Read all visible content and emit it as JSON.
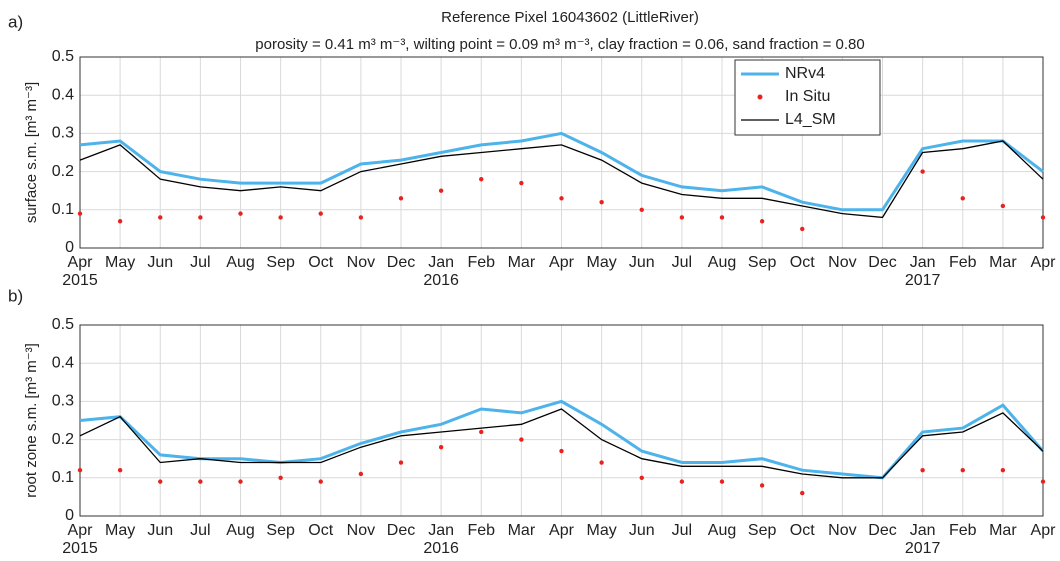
{
  "chart_data": [
    {
      "type": "line",
      "panel_label": "a)",
      "title": "Reference Pixel 16043602 (LittleRiver)",
      "subtitle": "porosity = 0.41 m³ m⁻³, wilting point = 0.09 m³ m⁻³, clay fraction = 0.06, sand fraction = 0.80",
      "ylabel": "surface s.m. [m³ m⁻³]",
      "x": [
        "2015-04",
        "2015-05",
        "2015-06",
        "2015-07",
        "2015-08",
        "2015-09",
        "2015-10",
        "2015-11",
        "2015-12",
        "2016-01",
        "2016-02",
        "2016-03",
        "2016-04",
        "2016-05",
        "2016-06",
        "2016-07",
        "2016-08",
        "2016-09",
        "2016-10",
        "2016-11",
        "2016-12",
        "2017-01",
        "2017-02",
        "2017-03",
        "2017-04"
      ],
      "series": [
        {
          "name": "NRv4",
          "color": "#4db3ea",
          "style": "line",
          "values": [
            0.27,
            0.28,
            0.2,
            0.18,
            0.17,
            0.17,
            0.17,
            0.22,
            0.23,
            0.25,
            0.27,
            0.28,
            0.3,
            0.25,
            0.19,
            0.16,
            0.15,
            0.16,
            0.12,
            0.1,
            0.1,
            0.26,
            0.28,
            0.28,
            0.2
          ]
        },
        {
          "name": "In Situ",
          "color": "#e8231f",
          "style": "markers",
          "values": [
            0.09,
            0.07,
            0.08,
            0.08,
            0.09,
            0.08,
            0.09,
            0.08,
            0.13,
            0.15,
            0.18,
            0.17,
            0.13,
            0.12,
            0.1,
            0.08,
            0.08,
            0.07,
            0.05,
            null,
            null,
            0.2,
            0.13,
            0.11,
            0.08
          ]
        },
        {
          "name": "L4_SM",
          "color": "#000000",
          "style": "line",
          "values": [
            0.23,
            0.27,
            0.18,
            0.16,
            0.15,
            0.16,
            0.15,
            0.2,
            0.22,
            0.24,
            0.25,
            0.26,
            0.27,
            0.23,
            0.17,
            0.14,
            0.13,
            0.13,
            0.11,
            0.09,
            0.08,
            0.25,
            0.26,
            0.28,
            0.18
          ]
        }
      ],
      "xlim": [
        "2015-04",
        "2017-04"
      ],
      "xticks": [
        {
          "value": "2015-04",
          "label": "Apr"
        },
        {
          "value": "2015-05",
          "label": "May"
        },
        {
          "value": "2015-06",
          "label": "Jun"
        },
        {
          "value": "2015-07",
          "label": "Jul"
        },
        {
          "value": "2015-08",
          "label": "Aug"
        },
        {
          "value": "2015-09",
          "label": "Sep"
        },
        {
          "value": "2015-10",
          "label": "Oct"
        },
        {
          "value": "2015-11",
          "label": "Nov"
        },
        {
          "value": "2015-12",
          "label": "Dec"
        },
        {
          "value": "2016-01",
          "label": "Jan"
        },
        {
          "value": "2016-02",
          "label": "Feb"
        },
        {
          "value": "2016-03",
          "label": "Mar"
        },
        {
          "value": "2016-04",
          "label": "Apr"
        },
        {
          "value": "2016-05",
          "label": "May"
        },
        {
          "value": "2016-06",
          "label": "Jun"
        },
        {
          "value": "2016-07",
          "label": "Jul"
        },
        {
          "value": "2016-08",
          "label": "Aug"
        },
        {
          "value": "2016-09",
          "label": "Sep"
        },
        {
          "value": "2016-10",
          "label": "Oct"
        },
        {
          "value": "2016-11",
          "label": "Nov"
        },
        {
          "value": "2016-12",
          "label": "Dec"
        },
        {
          "value": "2017-01",
          "label": "Jan"
        },
        {
          "value": "2017-02",
          "label": "Feb"
        },
        {
          "value": "2017-03",
          "label": "Mar"
        },
        {
          "value": "2017-04",
          "label": "Apr"
        }
      ],
      "xtick_years": [
        {
          "value": "2015-04",
          "label": "2015"
        },
        {
          "value": "2016-01",
          "label": "2016"
        },
        {
          "value": "2017-01",
          "label": "2017"
        }
      ],
      "ylim": [
        0,
        0.5
      ],
      "yticks": [
        0,
        0.1,
        0.2,
        0.3,
        0.4,
        0.5
      ],
      "grid": true,
      "legend": "upper right"
    },
    {
      "type": "line",
      "panel_label": "b)",
      "ylabel": "root zone s.m. [m³ m⁻³]",
      "x": [
        "2015-04",
        "2015-05",
        "2015-06",
        "2015-07",
        "2015-08",
        "2015-09",
        "2015-10",
        "2015-11",
        "2015-12",
        "2016-01",
        "2016-02",
        "2016-03",
        "2016-04",
        "2016-05",
        "2016-06",
        "2016-07",
        "2016-08",
        "2016-09",
        "2016-10",
        "2016-11",
        "2016-12",
        "2017-01",
        "2017-02",
        "2017-03",
        "2017-04"
      ],
      "series": [
        {
          "name": "NRv4",
          "color": "#4db3ea",
          "style": "line",
          "values": [
            0.25,
            0.26,
            0.16,
            0.15,
            0.15,
            0.14,
            0.15,
            0.19,
            0.22,
            0.24,
            0.28,
            0.27,
            0.3,
            0.24,
            0.17,
            0.14,
            0.14,
            0.15,
            0.12,
            0.11,
            0.1,
            0.22,
            0.23,
            0.29,
            0.17
          ]
        },
        {
          "name": "In Situ",
          "color": "#e8231f",
          "style": "markers",
          "values": [
            0.12,
            0.12,
            0.09,
            0.09,
            0.09,
            0.1,
            0.09,
            0.11,
            0.14,
            0.18,
            0.22,
            0.2,
            0.17,
            0.14,
            0.1,
            0.09,
            0.09,
            0.08,
            0.06,
            null,
            null,
            0.12,
            0.12,
            0.12,
            0.09
          ]
        },
        {
          "name": "L4_SM",
          "color": "#000000",
          "style": "line",
          "values": [
            0.21,
            0.26,
            0.14,
            0.15,
            0.14,
            0.14,
            0.14,
            0.18,
            0.21,
            0.22,
            0.23,
            0.24,
            0.28,
            0.2,
            0.15,
            0.13,
            0.13,
            0.13,
            0.11,
            0.1,
            0.1,
            0.21,
            0.22,
            0.27,
            0.17
          ]
        }
      ],
      "xlim": [
        "2015-04",
        "2017-04"
      ],
      "xticks": [
        {
          "value": "2015-04",
          "label": "Apr"
        },
        {
          "value": "2015-05",
          "label": "May"
        },
        {
          "value": "2015-06",
          "label": "Jun"
        },
        {
          "value": "2015-07",
          "label": "Jul"
        },
        {
          "value": "2015-08",
          "label": "Aug"
        },
        {
          "value": "2015-09",
          "label": "Sep"
        },
        {
          "value": "2015-10",
          "label": "Oct"
        },
        {
          "value": "2015-11",
          "label": "Nov"
        },
        {
          "value": "2015-12",
          "label": "Dec"
        },
        {
          "value": "2016-01",
          "label": "Jan"
        },
        {
          "value": "2016-02",
          "label": "Feb"
        },
        {
          "value": "2016-03",
          "label": "Mar"
        },
        {
          "value": "2016-04",
          "label": "Apr"
        },
        {
          "value": "2016-05",
          "label": "May"
        },
        {
          "value": "2016-06",
          "label": "Jun"
        },
        {
          "value": "2016-07",
          "label": "Jul"
        },
        {
          "value": "2016-08",
          "label": "Aug"
        },
        {
          "value": "2016-09",
          "label": "Sep"
        },
        {
          "value": "2016-10",
          "label": "Oct"
        },
        {
          "value": "2016-11",
          "label": "Nov"
        },
        {
          "value": "2016-12",
          "label": "Dec"
        },
        {
          "value": "2017-01",
          "label": "Jan"
        },
        {
          "value": "2017-02",
          "label": "Feb"
        },
        {
          "value": "2017-03",
          "label": "Mar"
        },
        {
          "value": "2017-04",
          "label": "Apr"
        }
      ],
      "xtick_years": [
        {
          "value": "2015-04",
          "label": "2015"
        },
        {
          "value": "2016-01",
          "label": "2016"
        },
        {
          "value": "2017-01",
          "label": "2017"
        }
      ],
      "ylim": [
        0,
        0.5
      ],
      "yticks": [
        0,
        0.1,
        0.2,
        0.3,
        0.4,
        0.5
      ],
      "grid": true
    }
  ]
}
